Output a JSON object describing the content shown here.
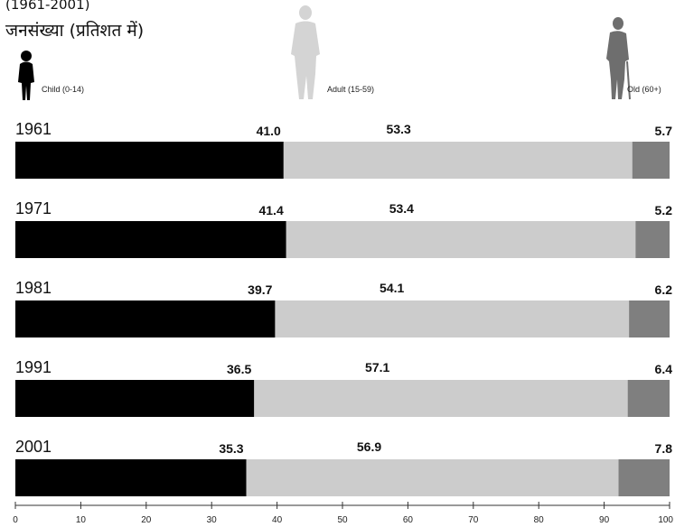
{
  "header": {
    "period": "(1961-2001)",
    "subtitle": "जनसंख्या (प्रतिशत में)"
  },
  "legend": [
    {
      "label": "Child (0-14)",
      "color": "#000000",
      "icon": "child-figure-icon"
    },
    {
      "label": "Adult (15-59)",
      "color": "#cccccc",
      "icon": "adult-figure-icon"
    },
    {
      "label": "Old (60+)",
      "color": "#7f7f7f",
      "icon": "old-person-figure-icon"
    }
  ],
  "chart_data": {
    "type": "bar",
    "stacked": true,
    "orientation": "horizontal",
    "categories": [
      "1961",
      "1971",
      "1981",
      "1991",
      "2001"
    ],
    "series": [
      {
        "name": "Child (0-14)",
        "color": "#000000",
        "values": [
          41.0,
          41.4,
          39.7,
          36.5,
          35.3
        ]
      },
      {
        "name": "Adult (15-59)",
        "color": "#cccccc",
        "values": [
          53.3,
          53.4,
          54.1,
          57.1,
          56.9
        ]
      },
      {
        "name": "Old (60+)",
        "color": "#7f7f7f",
        "values": [
          5.7,
          5.2,
          6.2,
          6.4,
          7.8
        ]
      }
    ],
    "value_labels": [
      [
        "41.0",
        "53.3",
        "5.7"
      ],
      [
        "41.4",
        "53.4",
        "5.2"
      ],
      [
        "39.7",
        "54.1",
        "6.2"
      ],
      [
        "36.5",
        "57.1",
        "6.4"
      ],
      [
        "35.3",
        "56.9",
        "7.8"
      ]
    ],
    "xlim": [
      0,
      100
    ],
    "xticks": [
      "0",
      "10",
      "20",
      "30",
      "40",
      "50",
      "60",
      "70",
      "80",
      "90",
      "100"
    ],
    "grid": false,
    "legend_position": "top"
  }
}
